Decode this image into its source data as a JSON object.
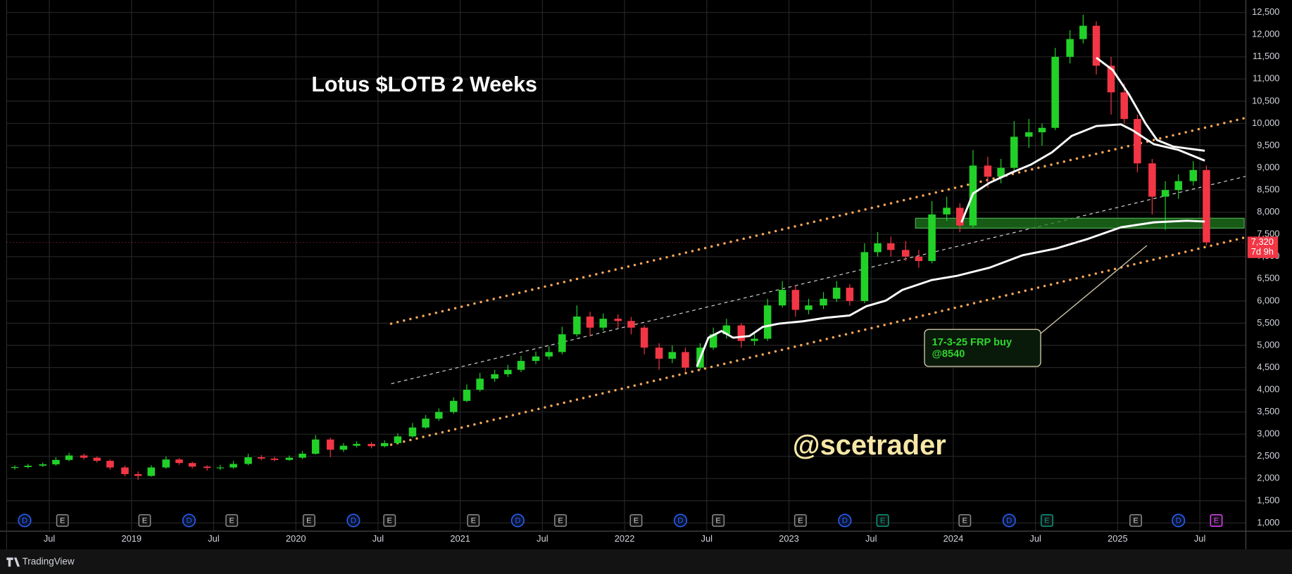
{
  "chart_data": {
    "type": "candlestick",
    "title": "Lotus $LOTB 2 Weeks",
    "watermark": "@scetrader",
    "up_color": "#22d128",
    "down_color": "#f23645",
    "grid": true,
    "xlim": [
      2018.24,
      2025.78
    ],
    "ylim": [
      815,
      12780
    ],
    "xticks": [
      {
        "value": 2018.5,
        "label": "Jul"
      },
      2019,
      {
        "value": 2019.5,
        "label": "Jul"
      },
      2020,
      {
        "value": 2020.5,
        "label": "Jul"
      },
      2021,
      {
        "value": 2021.5,
        "label": "Jul"
      },
      2022,
      {
        "value": 2022.5,
        "label": "Jul"
      },
      2023,
      {
        "value": 2023.5,
        "label": "Jul"
      },
      2024,
      {
        "value": 2024.5,
        "label": "Jul"
      },
      2025,
      {
        "value": 2025.5,
        "label": "Jul"
      }
    ],
    "yticks": [
      {
        "value": 1000,
        "label": "1,000"
      },
      {
        "value": 1500,
        "label": "1,500"
      },
      {
        "value": 2000,
        "label": "2,000"
      },
      {
        "value": 2500,
        "label": "2,500"
      },
      {
        "value": 3000,
        "label": "3,000"
      },
      {
        "value": 3500,
        "label": "3,500"
      },
      {
        "value": 4000,
        "label": "4,000"
      },
      {
        "value": 4500,
        "label": "4,500"
      },
      {
        "value": 5000,
        "label": "5,000"
      },
      {
        "value": 5500,
        "label": "5,500"
      },
      {
        "value": 6000,
        "label": "6,000"
      },
      {
        "value": 6500,
        "label": "6,500"
      },
      {
        "value": 7000,
        "label": "7,000"
      },
      {
        "value": 7500,
        "label": "7,500"
      },
      {
        "value": 8000,
        "label": "8,000"
      },
      {
        "value": 8500,
        "label": "8,500"
      },
      {
        "value": 9000,
        "label": "9,000"
      },
      {
        "value": 9500,
        "label": "9,500"
      },
      {
        "value": 10000,
        "label": "10,000"
      },
      {
        "value": 10500,
        "label": "10,500"
      },
      {
        "value": 11000,
        "label": "11,000"
      },
      {
        "value": 11500,
        "label": "11,500"
      },
      {
        "value": 12000,
        "label": "12,000"
      },
      {
        "value": 12500,
        "label": "12,500"
      }
    ],
    "x": [
      2018.29,
      2018.37,
      2018.46,
      2018.54,
      2018.62,
      2018.71,
      2018.79,
      2018.87,
      2018.96,
      2019.04,
      2019.12,
      2019.21,
      2019.29,
      2019.37,
      2019.46,
      2019.54,
      2019.62,
      2019.71,
      2019.79,
      2019.87,
      2019.96,
      2020.04,
      2020.12,
      2020.21,
      2020.29,
      2020.37,
      2020.46,
      2020.54,
      2020.62,
      2020.71,
      2020.79,
      2020.87,
      2020.96,
      2021.04,
      2021.12,
      2021.21,
      2021.29,
      2021.37,
      2021.46,
      2021.54,
      2021.62,
      2021.71,
      2021.79,
      2021.87,
      2021.96,
      2022.04,
      2022.12,
      2022.21,
      2022.29,
      2022.37,
      2022.46,
      2022.54,
      2022.62,
      2022.71,
      2022.79,
      2022.87,
      2022.96,
      2023.04,
      2023.12,
      2023.21,
      2023.29,
      2023.37,
      2023.46,
      2023.54,
      2023.62,
      2023.71,
      2023.79,
      2023.87,
      2023.96,
      2024.04,
      2024.12,
      2024.21,
      2024.29,
      2024.37,
      2024.46,
      2024.54,
      2024.62,
      2024.71,
      2024.79,
      2024.87,
      2024.96,
      2025.04,
      2025.12,
      2025.21,
      2025.29,
      2025.37,
      2025.46,
      2025.54
    ],
    "ohlc": [
      [
        2240,
        2300,
        2200,
        2260
      ],
      [
        2260,
        2330,
        2230,
        2290
      ],
      [
        2290,
        2360,
        2260,
        2320
      ],
      [
        2320,
        2480,
        2290,
        2420
      ],
      [
        2420,
        2580,
        2390,
        2520
      ],
      [
        2520,
        2560,
        2430,
        2470
      ],
      [
        2470,
        2500,
        2360,
        2400
      ],
      [
        2400,
        2430,
        2200,
        2250
      ],
      [
        2250,
        2290,
        2050,
        2100
      ],
      [
        2100,
        2160,
        1970,
        2060
      ],
      [
        2060,
        2300,
        2040,
        2250
      ],
      [
        2250,
        2500,
        2220,
        2430
      ],
      [
        2430,
        2460,
        2310,
        2350
      ],
      [
        2350,
        2380,
        2230,
        2270
      ],
      [
        2270,
        2300,
        2180,
        2240
      ],
      [
        2240,
        2310,
        2190,
        2250
      ],
      [
        2250,
        2400,
        2220,
        2330
      ],
      [
        2330,
        2560,
        2300,
        2480
      ],
      [
        2480,
        2530,
        2410,
        2450
      ],
      [
        2450,
        2490,
        2390,
        2420
      ],
      [
        2420,
        2520,
        2400,
        2470
      ],
      [
        2470,
        2620,
        2440,
        2560
      ],
      [
        2560,
        2980,
        2540,
        2880
      ],
      [
        2880,
        2920,
        2480,
        2650
      ],
      [
        2650,
        2800,
        2600,
        2740
      ],
      [
        2740,
        2840,
        2700,
        2780
      ],
      [
        2780,
        2820,
        2680,
        2730
      ],
      [
        2730,
        2860,
        2700,
        2800
      ],
      [
        2800,
        3020,
        2770,
        2950
      ],
      [
        2950,
        3250,
        2920,
        3150
      ],
      [
        3150,
        3430,
        3120,
        3350
      ],
      [
        3350,
        3580,
        3300,
        3500
      ],
      [
        3500,
        3830,
        3460,
        3750
      ],
      [
        3750,
        4120,
        3720,
        4000
      ],
      [
        4000,
        4380,
        3960,
        4250
      ],
      [
        4250,
        4450,
        4180,
        4350
      ],
      [
        4350,
        4560,
        4290,
        4450
      ],
      [
        4450,
        4760,
        4400,
        4650
      ],
      [
        4650,
        4860,
        4580,
        4750
      ],
      [
        4750,
        4980,
        4680,
        4850
      ],
      [
        4850,
        5420,
        4800,
        5250
      ],
      [
        5250,
        5900,
        5200,
        5650
      ],
      [
        5650,
        5760,
        5200,
        5400
      ],
      [
        5400,
        5720,
        5330,
        5600
      ],
      [
        5600,
        5700,
        5380,
        5550
      ],
      [
        5550,
        5640,
        5250,
        5400
      ],
      [
        5400,
        5450,
        4800,
        4950
      ],
      [
        4950,
        5050,
        4450,
        4700
      ],
      [
        4700,
        5000,
        4600,
        4850
      ],
      [
        4850,
        4950,
        4400,
        4500
      ],
      [
        4500,
        5050,
        4450,
        4950
      ],
      [
        4950,
        5400,
        4900,
        5250
      ],
      [
        5250,
        5600,
        5150,
        5450
      ],
      [
        5450,
        5500,
        4950,
        5100
      ],
      [
        5100,
        5280,
        5000,
        5150
      ],
      [
        5150,
        6050,
        5100,
        5900
      ],
      [
        5900,
        6450,
        5850,
        6250
      ],
      [
        6250,
        6350,
        5650,
        5800
      ],
      [
        5800,
        6050,
        5700,
        5900
      ],
      [
        5900,
        6200,
        5820,
        6050
      ],
      [
        6050,
        6450,
        5980,
        6300
      ],
      [
        6300,
        6380,
        5900,
        6000
      ],
      [
        6000,
        7300,
        5950,
        7100
      ],
      [
        7100,
        7550,
        7000,
        7300
      ],
      [
        7300,
        7450,
        7000,
        7150
      ],
      [
        7150,
        7350,
        6900,
        7000
      ],
      [
        7000,
        7150,
        6750,
        6900
      ],
      [
        6900,
        8250,
        6850,
        7950
      ],
      [
        7950,
        8350,
        7800,
        8100
      ],
      [
        8100,
        8200,
        7550,
        7700
      ],
      [
        7700,
        9400,
        7650,
        9050
      ],
      [
        9050,
        9250,
        8550,
        8800
      ],
      [
        8800,
        9200,
        8650,
        9000
      ],
      [
        9000,
        10050,
        8900,
        9700
      ],
      [
        9700,
        10100,
        9450,
        9800
      ],
      [
        9800,
        10000,
        9500,
        9900
      ],
      [
        9900,
        11700,
        9850,
        11500
      ],
      [
        11500,
        12100,
        11350,
        11900
      ],
      [
        11900,
        12450,
        11800,
        12200
      ],
      [
        12200,
        12300,
        11100,
        11300
      ],
      [
        11300,
        11500,
        10200,
        10700
      ],
      [
        10700,
        10900,
        10000,
        10100
      ],
      [
        10100,
        10200,
        8900,
        9100
      ],
      [
        9100,
        9200,
        7950,
        8350
      ],
      [
        8350,
        8700,
        7600,
        8500
      ],
      [
        8500,
        8850,
        8300,
        8700
      ],
      [
        8700,
        9150,
        8600,
        8950
      ],
      [
        8950,
        9050,
        7250,
        7320
      ]
    ],
    "moving_averages": [
      {
        "color": "#ffffff",
        "x": [
          2022.44,
          2022.51,
          2022.59,
          2022.66,
          2022.76,
          2022.84,
          2022.94,
          2023.09,
          2023.22,
          2023.37,
          2023.47,
          2023.59,
          2023.69,
          2023.87,
          2024.02,
          2024.22,
          2024.42,
          2024.62,
          2024.82,
          2025.02,
          2025.22,
          2025.42,
          2025.53
        ],
        "values": [
          4525,
          5174,
          5323,
          5174,
          5211,
          5415,
          5490,
          5545,
          5620,
          5675,
          5880,
          6009,
          6250,
          6473,
          6565,
          6750,
          7029,
          7177,
          7400,
          7660,
          7771,
          7808,
          7790
        ]
      },
      {
        "color": "#ffffff",
        "x": [
          2024.05,
          2024.12,
          2024.22,
          2024.35,
          2024.47,
          2024.6,
          2024.72,
          2024.87,
          2025.02,
          2025.09,
          2025.22,
          2025.37,
          2025.53
        ],
        "values": [
          7771,
          8420,
          8661,
          8884,
          9069,
          9347,
          9718,
          9941,
          9978,
          9848,
          9533,
          9403,
          9162
        ]
      },
      {
        "color": "#ffffff",
        "x": [
          2024.87,
          2024.97,
          2025.07,
          2025.17,
          2025.24,
          2025.34,
          2025.53
        ],
        "values": [
          11480,
          11202,
          10645,
          9996,
          9625,
          9477,
          9384
        ]
      }
    ],
    "trendlines": [
      {
        "color": "#f5a65b",
        "style": "dotted",
        "x": [
          2020.58,
          2025.78
        ],
        "values": [
          5490,
          10126
        ]
      },
      {
        "color": "#f5a65b",
        "style": "dotted",
        "x": [
          2020.58,
          2025.78
        ],
        "values": [
          2763,
          7437
        ]
      },
      {
        "color": "#d8d8d8",
        "style": "dashed",
        "x": [
          2020.58,
          2025.78
        ],
        "values": [
          4136,
          8809
        ]
      }
    ],
    "zone": {
      "color": "#1f7a1f",
      "x": [
        2023.77,
        2025.77
      ],
      "values": [
        7641,
        7864
      ]
    },
    "annotation": {
      "color": "#2fd62f",
      "lines": [
        "17-3-25 FRP buy",
        "@8540"
      ]
    },
    "last_price": {
      "value": 7320,
      "label": "7,320",
      "countdown": "7d 9h",
      "color": "#f23645"
    },
    "events": [
      {
        "x": 2018.35,
        "label": "D",
        "shape": "circle",
        "color": "#2962ff"
      },
      {
        "x": 2018.58,
        "label": "E",
        "shape": "square",
        "color": "#8a8a8a"
      },
      {
        "x": 2019.08,
        "label": "E",
        "shape": "square",
        "color": "#8a8a8a"
      },
      {
        "x": 2019.35,
        "label": "D",
        "shape": "circle",
        "color": "#2962ff"
      },
      {
        "x": 2019.61,
        "label": "E",
        "shape": "square",
        "color": "#8a8a8a"
      },
      {
        "x": 2020.08,
        "label": "E",
        "shape": "square",
        "color": "#8a8a8a"
      },
      {
        "x": 2020.35,
        "label": "D",
        "shape": "circle",
        "color": "#2962ff"
      },
      {
        "x": 2020.57,
        "label": "E",
        "shape": "square",
        "color": "#8a8a8a"
      },
      {
        "x": 2021.08,
        "label": "E",
        "shape": "square",
        "color": "#8a8a8a"
      },
      {
        "x": 2021.35,
        "label": "D",
        "shape": "circle",
        "color": "#2962ff"
      },
      {
        "x": 2021.61,
        "label": "E",
        "shape": "square",
        "color": "#8a8a8a"
      },
      {
        "x": 2022.07,
        "label": "E",
        "shape": "square",
        "color": "#8a8a8a"
      },
      {
        "x": 2022.34,
        "label": "D",
        "shape": "circle",
        "color": "#2962ff"
      },
      {
        "x": 2022.57,
        "label": "E",
        "shape": "square",
        "color": "#8a8a8a"
      },
      {
        "x": 2023.07,
        "label": "E",
        "shape": "square",
        "color": "#8a8a8a"
      },
      {
        "x": 2023.34,
        "label": "D",
        "shape": "circle",
        "color": "#2962ff"
      },
      {
        "x": 2023.57,
        "label": "E",
        "shape": "square",
        "color": "#089981"
      },
      {
        "x": 2024.07,
        "label": "E",
        "shape": "square",
        "color": "#8a8a8a"
      },
      {
        "x": 2024.34,
        "label": "D",
        "shape": "circle",
        "color": "#2962ff"
      },
      {
        "x": 2024.57,
        "label": "E",
        "shape": "square",
        "color": "#089981"
      },
      {
        "x": 2025.11,
        "label": "E",
        "shape": "square",
        "color": "#8a8a8a"
      },
      {
        "x": 2025.37,
        "label": "D",
        "shape": "circle",
        "color": "#2962ff"
      },
      {
        "x": 2025.6,
        "label": "E",
        "shape": "square",
        "color": "#e040fb"
      }
    ]
  },
  "footer": {
    "brand": "TradingView"
  }
}
